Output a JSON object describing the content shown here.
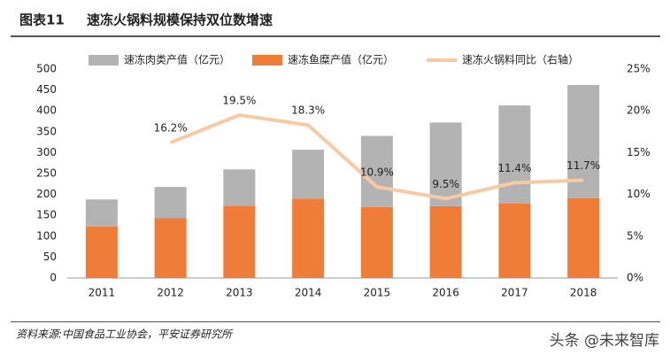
{
  "chart_data": {
    "type": "bar_line",
    "figure_label": "图表11",
    "title": "速冻火锅料规模保持双位数增速",
    "categories": [
      "2011",
      "2012",
      "2013",
      "2014",
      "2015",
      "2016",
      "2017",
      "2018"
    ],
    "series": [
      {
        "name": "速冻肉类产值（亿元）",
        "type": "bar",
        "color": "#b3b3b3",
        "values": [
          65,
          75,
          87,
          117,
          170,
          200,
          235,
          271
        ]
      },
      {
        "name": "速冻鱼糜产值（亿元）",
        "type": "bar",
        "color": "#ef7d37",
        "values": [
          123,
          143,
          173,
          190,
          170,
          172,
          178,
          191
        ]
      },
      {
        "name": "速冻火锅料同比（右轴）",
        "type": "line",
        "axis": "y2",
        "color": "#f8c9a3",
        "values": [
          null,
          16.2,
          19.5,
          18.3,
          10.9,
          9.5,
          11.4,
          11.7
        ],
        "value_labels": [
          null,
          "16.2%",
          "19.5%",
          "18.3%",
          "10.9%",
          "9.5%",
          "11.4%",
          "11.7%"
        ]
      }
    ],
    "ylim": [
      0,
      500
    ],
    "yticks": [
      0,
      50,
      100,
      150,
      200,
      250,
      300,
      350,
      400,
      450,
      500
    ],
    "y2lim": [
      0,
      25
    ],
    "y2ticks": [
      {
        "value": 0,
        "label": "0%"
      },
      {
        "value": 5,
        "label": "5%"
      },
      {
        "value": 10,
        "label": "10%"
      },
      {
        "value": 15,
        "label": "15%"
      },
      {
        "value": 20,
        "label": "20%"
      },
      {
        "value": 25,
        "label": "25%"
      }
    ],
    "source": "资料来源:中国食品工业协会，平安证券研究所",
    "watermark": "头条 @未来智库"
  }
}
